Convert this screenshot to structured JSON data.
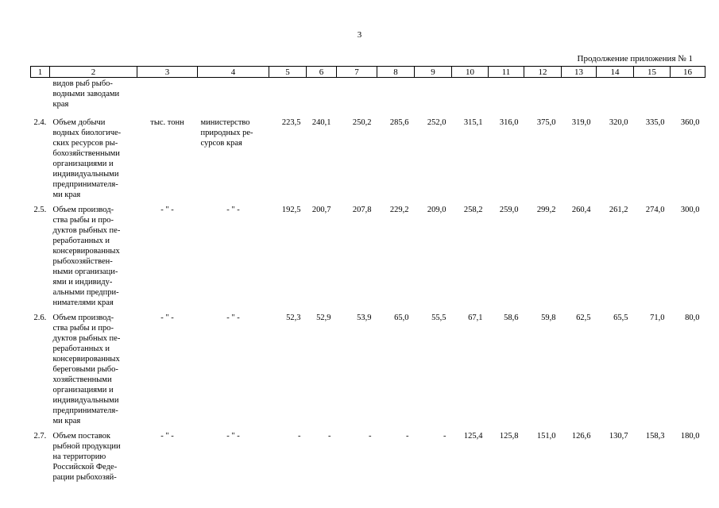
{
  "page_number": "3",
  "caption": "Продолжение приложения № 1",
  "table": {
    "header": [
      "1",
      "2",
      "3",
      "4",
      "5",
      "6",
      "7",
      "8",
      "9",
      "10",
      "11",
      "12",
      "13",
      "14",
      "15",
      "16"
    ],
    "rows": [
      {
        "description": [
          "видов рыб рыбо-",
          "водными заводами",
          "края"
        ]
      },
      {
        "number": "2.4.",
        "description": [
          "Объем добычи",
          "водных биологиче-",
          "ских ресурсов ры-",
          "бохозяйственными",
          "организациями и",
          "индивидуальными",
          "предпринимателя-",
          "ми края"
        ],
        "unit": "тыс. тонн",
        "responsible": [
          "министерство",
          "природных ре-",
          "сурсов края"
        ],
        "values": [
          "223,5",
          "240,1",
          "250,2",
          "285,6",
          "252,0",
          "315,1",
          "316,0",
          "375,0",
          "319,0",
          "320,0",
          "335,0",
          "360,0"
        ]
      },
      {
        "number": "2.5.",
        "description": [
          "Объем производ-",
          "ства рыбы и про-",
          "дуктов рыбных пе-",
          "реработанных и",
          "консервированных",
          "рыбохозяйствен-",
          "ными организаци-",
          "ями и индивиду-",
          "альными предпри-",
          "нимателями края"
        ],
        "unit": "- \" -",
        "responsible": "- \" -",
        "values": [
          "192,5",
          "200,7",
          "207,8",
          "229,2",
          "209,0",
          "258,2",
          "259,0",
          "299,2",
          "260,4",
          "261,2",
          "274,0",
          "300,0"
        ]
      },
      {
        "number": "2.6.",
        "description": [
          "Объем производ-",
          "ства рыбы и про-",
          "дуктов рыбных пе-",
          "реработанных и",
          "консервированных",
          "береговыми рыбо-",
          "хозяйственными",
          "организациями и",
          "индивидуальными",
          "предпринимателя-",
          "ми края"
        ],
        "unit": "- \" -",
        "responsible": "- \" -",
        "values": [
          "52,3",
          "52,9",
          "53,9",
          "65,0",
          "55,5",
          "67,1",
          "58,6",
          "59,8",
          "62,5",
          "65,5",
          "71,0",
          "80,0"
        ]
      },
      {
        "number": "2.7.",
        "description": [
          "Объем поставок",
          "рыбной продукции",
          "на территорию",
          "Российской Феде-",
          "рации рыбохозяй-"
        ],
        "unit": "- \" -",
        "responsible": "- \" -",
        "values": [
          "-",
          "-",
          "-",
          "-",
          "-",
          "125,4",
          "125,8",
          "151,0",
          "126,6",
          "130,7",
          "158,3",
          "180,0"
        ]
      }
    ]
  }
}
